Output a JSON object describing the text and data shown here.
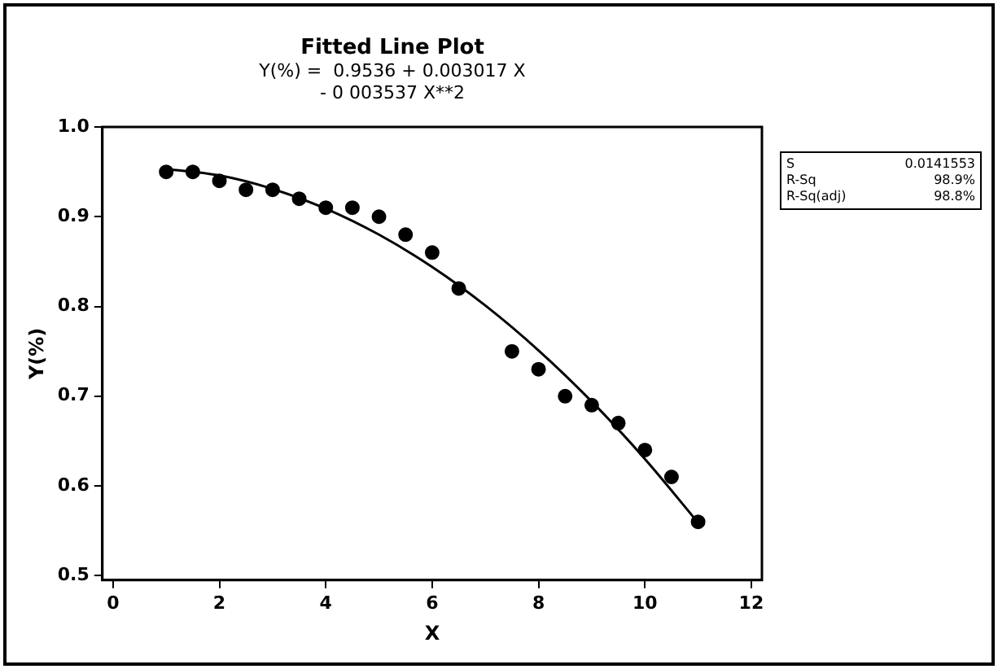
{
  "chart_data": {
    "type": "scatter",
    "title": "Fitted Line Plot",
    "subtitle": "Y(%) =  0.9536 + 0.003017 X\n- 0 003537 X**2",
    "xlabel": "X",
    "ylabel": "Y(%)",
    "xlim": [
      -0.2,
      12.2
    ],
    "xticks": [
      0,
      2,
      4,
      6,
      8,
      10,
      12
    ],
    "ylim": [
      0.495,
      1.0
    ],
    "yticks": [
      0.5,
      0.6,
      0.7,
      0.8,
      0.9,
      {
        "value": 1,
        "label": "1.0"
      }
    ],
    "grid": false,
    "legend": false,
    "marker": "circle",
    "series": [
      {
        "type": "scatter",
        "color": "#000000",
        "x": [
          1,
          1.5,
          2,
          2.5,
          3,
          3.5,
          4,
          4.5,
          5,
          5.5,
          6,
          6.5,
          7.5,
          8,
          8.5,
          9,
          9.5,
          10,
          10.5,
          11
        ],
        "values": [
          0.95,
          0.95,
          0.94,
          0.93,
          0.93,
          0.92,
          0.91,
          0.91,
          0.9,
          0.88,
          0.86,
          0.82,
          0.75,
          0.73,
          0.7,
          0.69,
          0.67,
          0.64,
          0.61,
          0.56
        ]
      },
      {
        "type": "line",
        "color": "#000000",
        "marker": "none",
        "line_style": "solid",
        "x": [
          1,
          2,
          3,
          4,
          5,
          6,
          7,
          8,
          9,
          10,
          11
        ],
        "values": [
          0.953,
          0.946,
          0.931,
          0.909,
          0.88,
          0.844,
          0.801,
          0.751,
          0.694,
          0.63,
          0.559
        ]
      }
    ],
    "annotations": [
      "S",
      "0.0141553",
      "R-Sq",
      "98.9%",
      "R-Sq(adj)",
      "98.8%"
    ]
  }
}
